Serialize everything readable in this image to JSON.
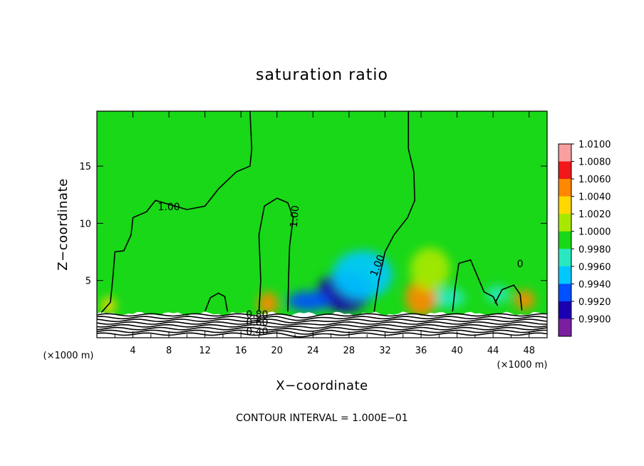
{
  "chart_data": {
    "type": "heatmap",
    "title": "saturation ratio",
    "xlabel": "X−coordinate",
    "ylabel": "Z−coordinate",
    "x_unit_left": "(×1000 m)",
    "x_unit_right": "(×1000 m)",
    "xlim": [
      0,
      50
    ],
    "ylim": [
      0,
      19.8
    ],
    "x_ticks": [
      4,
      8,
      12,
      16,
      20,
      24,
      28,
      32,
      36,
      40,
      44,
      48
    ],
    "y_ticks": [
      5,
      10,
      15
    ],
    "colorbar": {
      "levels": [
        0.99,
        0.992,
        0.994,
        0.996,
        0.998,
        1.0,
        1.002,
        1.004,
        1.006,
        1.008,
        1.01
      ],
      "labels": [
        "0.9900",
        "0.9920",
        "0.9940",
        "0.9960",
        "0.9980",
        "1.0000",
        "1.0020",
        "1.0040",
        "1.0060",
        "1.0080",
        "1.0100"
      ],
      "colors": [
        "#7a1fa0",
        "#1a00b0",
        "#0050ff",
        "#00c8ff",
        "#28e8c0",
        "#18d818",
        "#a8e800",
        "#ffd800",
        "#ff8800",
        "#f01818",
        "#f8a0a0"
      ]
    },
    "background_value": 1.0,
    "features": [
      {
        "kind": "dry",
        "x": 27.5,
        "z": 4.0,
        "value": 0.992
      },
      {
        "kind": "dry",
        "x": 23.5,
        "z": 3.2,
        "value": 0.9935
      },
      {
        "kind": "dry",
        "x": 29.5,
        "z": 5.5,
        "value": 0.9965
      },
      {
        "kind": "dry",
        "x": 39.0,
        "z": 3.5,
        "value": 0.9975
      },
      {
        "kind": "dry",
        "x": 44.5,
        "z": 3.8,
        "value": 0.998
      },
      {
        "kind": "moist",
        "x": 36.0,
        "z": 3.5,
        "value": 1.007
      },
      {
        "kind": "moist",
        "x": 19.0,
        "z": 3.0,
        "value": 1.006
      },
      {
        "kind": "moist",
        "x": 47.5,
        "z": 3.3,
        "value": 1.006
      },
      {
        "kind": "moist",
        "x": 1.3,
        "z": 2.8,
        "value": 1.004
      },
      {
        "kind": "moist",
        "x": 37.0,
        "z": 6.0,
        "value": 1.002
      }
    ],
    "contour_labels": [
      {
        "text": "1.00",
        "x": 8.0,
        "z": 11.4
      },
      {
        "text": "1.00",
        "x": 22.0,
        "z": 10.6
      },
      {
        "text": "1.00",
        "x": 31.2,
        "z": 6.3
      },
      {
        "text": "0",
        "x": 47.0,
        "z": 6.4
      },
      {
        "text": "0.80",
        "x": 17.8,
        "z": 2.0
      },
      {
        "text": "0.60",
        "x": 17.8,
        "z": 1.3
      },
      {
        "text": "0.40",
        "x": 17.8,
        "z": 0.5
      }
    ],
    "contour_interval_text": "CONTOUR INTERVAL = 1.000E−01",
    "grid": false
  }
}
